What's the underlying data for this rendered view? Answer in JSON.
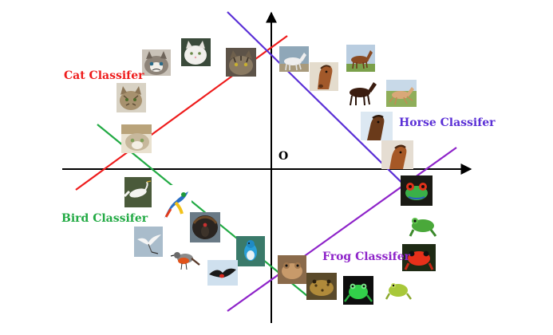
{
  "origin_label": "O",
  "classifiers": [
    {
      "key": "cat",
      "label": "Cat Classifer",
      "color": "#ee1c1c"
    },
    {
      "key": "horse",
      "label": "Horse Classifer",
      "color": "#5a2fd6"
    },
    {
      "key": "bird",
      "label": "Bird Classifer",
      "color": "#22aa44"
    },
    {
      "key": "frog",
      "label": "Frog Classifer",
      "color": "#8e24c9"
    }
  ],
  "thumbnails": {
    "cat": [
      "grumpy-cat",
      "white-cat",
      "tabby-cat",
      "striped-cat",
      "peeking-cat"
    ],
    "horse": [
      "white-horse",
      "brown-horse-head",
      "chestnut-horse",
      "dark-bay-horse",
      "galloping-horse",
      "horse-head-sky",
      "horse-field"
    ],
    "bird": [
      "egret",
      "macaw",
      "turkey",
      "heron-flight",
      "robin",
      "blue-bird",
      "frigatebird"
    ],
    "frog": [
      "tree-frog-eye",
      "green-frog",
      "red-frog",
      "brown-frog",
      "toad",
      "glass-frog",
      "yellow-green-frog"
    ]
  }
}
